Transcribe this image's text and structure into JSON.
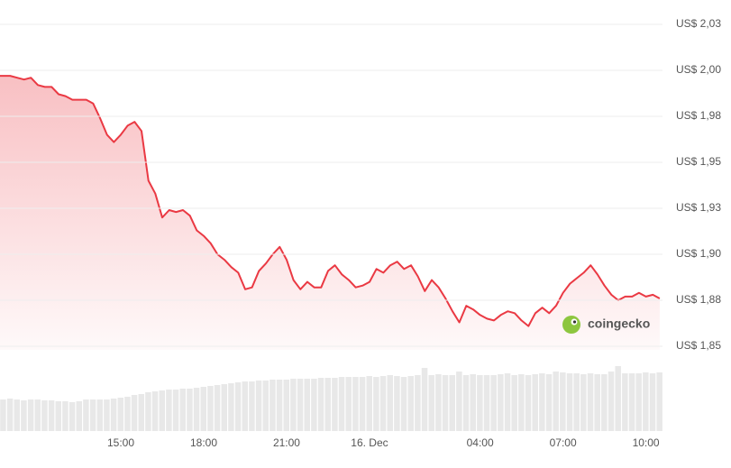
{
  "chart_data": {
    "type": "line",
    "color": "#ea3943",
    "x": [
      10.75,
      11,
      11.25,
      11.5,
      11.75,
      12,
      12.25,
      12.5,
      12.75,
      13,
      13.25,
      13.5,
      13.75,
      14,
      14.25,
      14.5,
      14.75,
      15,
      15.25,
      15.5,
      15.75,
      16,
      16.25,
      16.5,
      16.75,
      17,
      17.25,
      17.5,
      17.75,
      18,
      18.25,
      18.5,
      18.75,
      19,
      19.25,
      19.5,
      19.75,
      20,
      20.25,
      20.5,
      20.75,
      21,
      21.25,
      21.5,
      21.75,
      22,
      22.25,
      22.5,
      22.75,
      23,
      23.25,
      23.5,
      23.75,
      24,
      24.25,
      24.5,
      24.75,
      25,
      25.25,
      25.5,
      25.75,
      26,
      26.25,
      26.5,
      26.75,
      27,
      27.25,
      27.5,
      27.75,
      28,
      28.25,
      28.5,
      28.75,
      29,
      29.25,
      29.5,
      29.75,
      30,
      30.25,
      30.5,
      30.75,
      31,
      31.25,
      31.5,
      31.75,
      32,
      32.25,
      32.5,
      32.75,
      33,
      33.25,
      33.5,
      33.75,
      34,
      34.25,
      34.5
    ],
    "values": [
      1.997,
      1.997,
      1.996,
      1.995,
      1.996,
      1.992,
      1.991,
      1.991,
      1.987,
      1.986,
      1.984,
      1.984,
      1.984,
      1.982,
      1.974,
      1.965,
      1.961,
      1.965,
      1.97,
      1.972,
      1.967,
      1.94,
      1.933,
      1.92,
      1.924,
      1.923,
      1.924,
      1.921,
      1.913,
      1.91,
      1.906,
      1.9,
      1.897,
      1.893,
      1.89,
      1.881,
      1.882,
      1.891,
      1.895,
      1.9,
      1.904,
      1.897,
      1.886,
      1.881,
      1.885,
      1.882,
      1.882,
      1.891,
      1.894,
      1.889,
      1.886,
      1.882,
      1.883,
      1.885,
      1.892,
      1.89,
      1.894,
      1.896,
      1.892,
      1.894,
      1.888,
      1.88,
      1.886,
      1.882,
      1.876,
      1.869,
      1.863,
      1.872,
      1.87,
      1.867,
      1.865,
      1.864,
      1.867,
      1.869,
      1.868,
      1.864,
      1.861,
      1.868,
      1.871,
      1.868,
      1.872,
      1.879,
      1.884,
      1.887,
      1.89,
      1.894,
      1.889,
      1.883,
      1.878,
      1.875,
      1.877,
      1.877,
      1.879,
      1.877,
      1.878,
      1.876
    ],
    "xlim": [
      10.63,
      34.6
    ],
    "xticks": [
      {
        "value": 15,
        "label": "15:00"
      },
      {
        "value": 18,
        "label": "18:00"
      },
      {
        "value": 21,
        "label": "21:00"
      },
      {
        "value": 24,
        "label": "16. Dec"
      },
      {
        "value": 28,
        "label": "04:00"
      },
      {
        "value": 31,
        "label": "07:00"
      },
      {
        "value": 34,
        "label": "10:00"
      }
    ],
    "ylim": [
      1.85,
      2.025
    ],
    "yticks": [
      {
        "value": 1.85,
        "label": "US$ 1,85"
      },
      {
        "value": 1.875,
        "label": "US$ 1,88"
      },
      {
        "value": 1.9,
        "label": "US$ 1,90"
      },
      {
        "value": 1.925,
        "label": "US$ 1,93"
      },
      {
        "value": 1.95,
        "label": "US$ 1,95"
      },
      {
        "value": 1.975,
        "label": "US$ 1,98"
      },
      {
        "value": 2.0,
        "label": "US$ 2,00"
      },
      {
        "value": 2.025,
        "label": "US$ 2,03"
      }
    ],
    "grid": true,
    "volume": {
      "color": "#e8e8e8",
      "ylim": [
        0,
        90
      ],
      "values": [
        35,
        36,
        35,
        34,
        35,
        35,
        34,
        34,
        33,
        33,
        32,
        33,
        35,
        35,
        35,
        35,
        36,
        37,
        38,
        40,
        41,
        43,
        44,
        45,
        46,
        46,
        47,
        47,
        48,
        49,
        50,
        51,
        52,
        53,
        54,
        55,
        55,
        56,
        56,
        57,
        57,
        57,
        58,
        58,
        58,
        58,
        59,
        59,
        59,
        60,
        60,
        60,
        60,
        61,
        60,
        61,
        62,
        61,
        60,
        61,
        62,
        70,
        62,
        63,
        62,
        62,
        66,
        62,
        63,
        62,
        62,
        62,
        63,
        64,
        62,
        63,
        62,
        63,
        64,
        63,
        66,
        65,
        64,
        64,
        63,
        64,
        63,
        63,
        66,
        72,
        64,
        64,
        64,
        65,
        64,
        65
      ]
    },
    "watermark": "coingecko"
  }
}
